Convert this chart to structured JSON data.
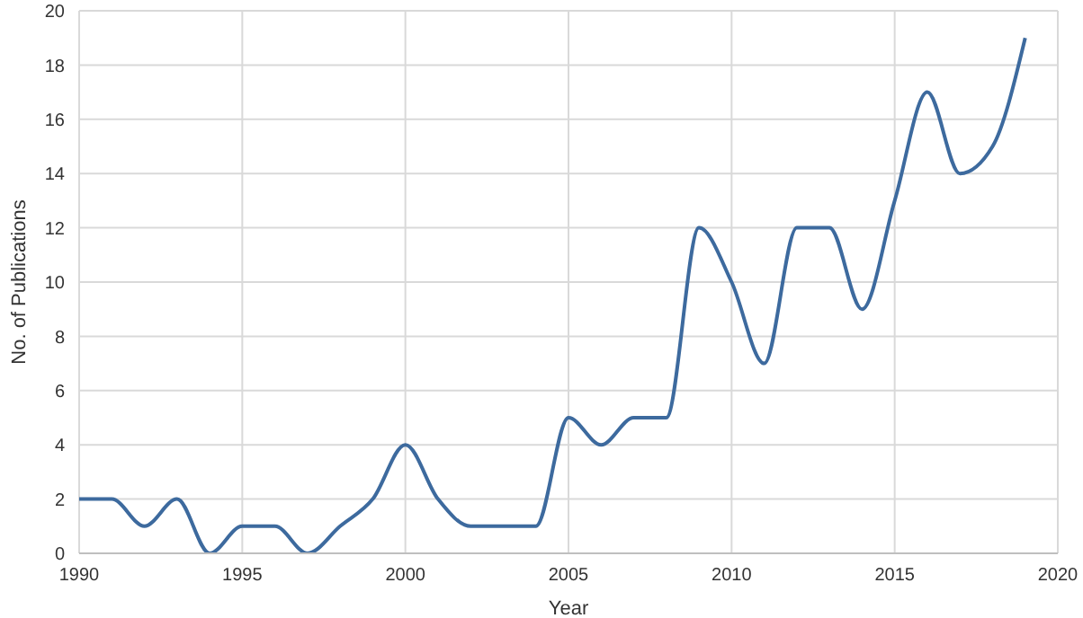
{
  "chart_data": {
    "type": "line",
    "xlabel": "Year",
    "ylabel": "No. of Publications",
    "x": [
      1990,
      1991,
      1992,
      1993,
      1994,
      1995,
      1996,
      1997,
      1998,
      1999,
      2000,
      2001,
      2002,
      2003,
      2004,
      2005,
      2006,
      2007,
      2008,
      2009,
      2010,
      2011,
      2012,
      2013,
      2014,
      2015,
      2016,
      2017,
      2018,
      2019
    ],
    "series": [
      {
        "color": "#3d6a9e",
        "values": [
          2,
          2,
          1,
          2,
          0,
          1,
          1,
          0,
          1,
          2,
          4,
          2,
          1,
          1,
          1,
          5,
          4,
          5,
          5,
          12,
          10,
          7,
          12,
          12,
          9,
          13,
          17,
          14,
          15,
          19
        ]
      }
    ],
    "xlim": [
      1990,
      2020
    ],
    "xticks": [
      1990,
      1995,
      2000,
      2005,
      2010,
      2015,
      2020
    ],
    "ylim": [
      0,
      20
    ],
    "yticks": [
      0,
      2,
      4,
      6,
      8,
      10,
      12,
      14,
      16,
      18,
      20
    ],
    "grid": true,
    "legend": false,
    "marker": "none",
    "line_style": "solid"
  }
}
